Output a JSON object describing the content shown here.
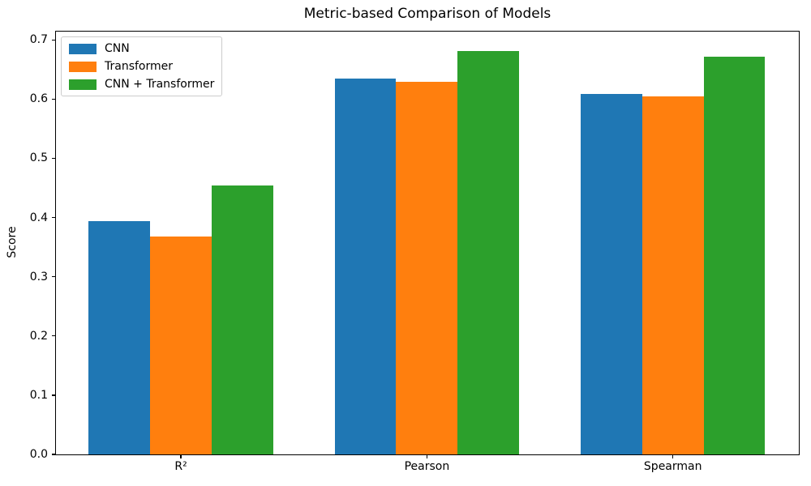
{
  "chart_data": {
    "type": "bar",
    "title": "Metric-based Comparison of Models",
    "xlabel": "",
    "ylabel": "Score",
    "categories": [
      "R²",
      "Pearson",
      "Spearman"
    ],
    "series": [
      {
        "name": "CNN",
        "color": "#1f77b4",
        "values": [
          0.394,
          0.635,
          0.609
        ]
      },
      {
        "name": "Transformer",
        "color": "#ff7f0e",
        "values": [
          0.368,
          0.629,
          0.605
        ]
      },
      {
        "name": "CNN + Transformer",
        "color": "#2ca02c",
        "values": [
          0.454,
          0.681,
          0.672
        ]
      }
    ],
    "bar_width": 0.25,
    "yticks": [
      0.0,
      0.1,
      0.2,
      0.3,
      0.4,
      0.5,
      0.6,
      0.7
    ],
    "ylim": [
      0,
      0.714
    ],
    "xlim": [
      -0.508,
      2.512
    ],
    "grid": false,
    "legend_position": "upper left",
    "background_color": "#ffffff",
    "spine_color": "#000000"
  }
}
